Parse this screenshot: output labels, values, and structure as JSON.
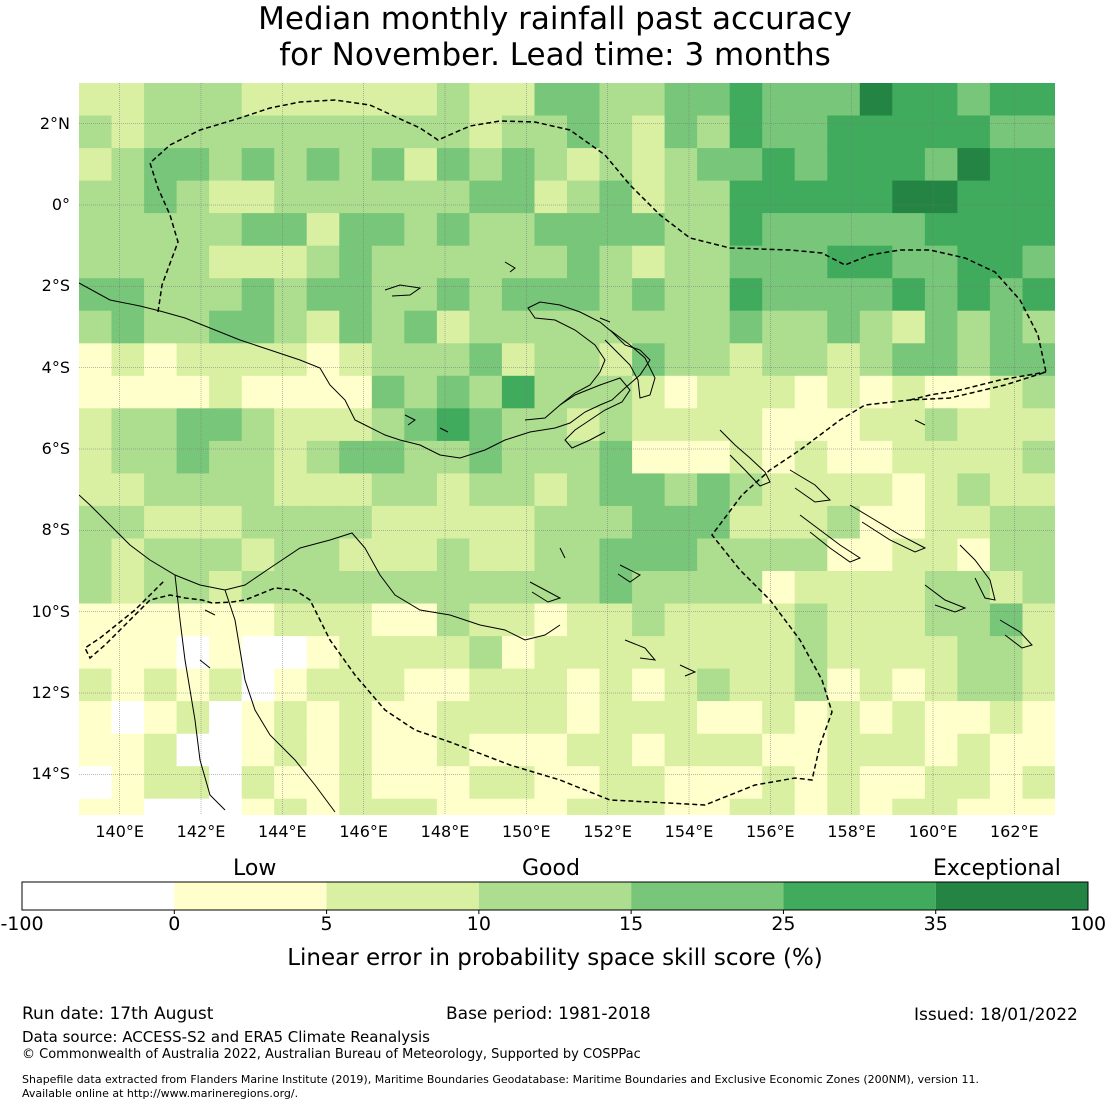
{
  "title": {
    "line1": "Median monthly rainfall past accuracy",
    "line2": "for November. Lead time: 3 months"
  },
  "map": {
    "lat_labels": [
      "2°N",
      "0°",
      "2°S",
      "4°S",
      "6°S",
      "8°S",
      "10°S",
      "12°S",
      "14°S"
    ],
    "lon_labels": [
      "140°E",
      "142°E",
      "144°E",
      "146°E",
      "148°E",
      "150°E",
      "152°E",
      "154°E",
      "156°E",
      "158°E",
      "160°E",
      "162°E"
    ],
    "lon_range": [
      139,
      163
    ],
    "lat_range": [
      -15,
      3
    ],
    "grid_cell_deg": 0.8,
    "boundary_style": "dashed black line (maritime EEZ boundary)",
    "coastline_style": "thin black line"
  },
  "colorbar": {
    "categories": {
      "low": "Low",
      "good": "Good",
      "exceptional": "Exceptional"
    },
    "ticks": [
      "-100",
      "0",
      "5",
      "10",
      "15",
      "25",
      "35",
      "100"
    ],
    "bins": [
      {
        "from": -100,
        "to": 0,
        "color": "#ffffff"
      },
      {
        "from": 0,
        "to": 5,
        "color": "#ffffcc"
      },
      {
        "from": 5,
        "to": 10,
        "color": "#d9f0a3"
      },
      {
        "from": 10,
        "to": 15,
        "color": "#addd8e"
      },
      {
        "from": 15,
        "to": 25,
        "color": "#78c679"
      },
      {
        "from": 25,
        "to": 35,
        "color": "#41ab5d"
      },
      {
        "from": 35,
        "to": 100,
        "color": "#238443"
      }
    ],
    "label": "Linear error in probability space skill score (%)"
  },
  "footer": {
    "run_date": "Run date: 17th August",
    "base_period": "Base period: 1981-2018",
    "issued": "Issued: 18/01/2022",
    "data_source": "Data source: ACCESS-S2 and ERA5 Climate Reanalysis",
    "copyright": "© Commonwealth of Australia 2022, Australian Bureau of Meteorology, Supported by COSPPac",
    "shapefile_line1": "Shapefile data extracted from Flanders Marine Institute (2019), Maritime Boundaries Geodatabase: Maritime Boundaries and Exclusive Economic Zones (200NM), version 11.",
    "shapefile_line2": "Available online at http://www.marineregions.org/."
  }
}
